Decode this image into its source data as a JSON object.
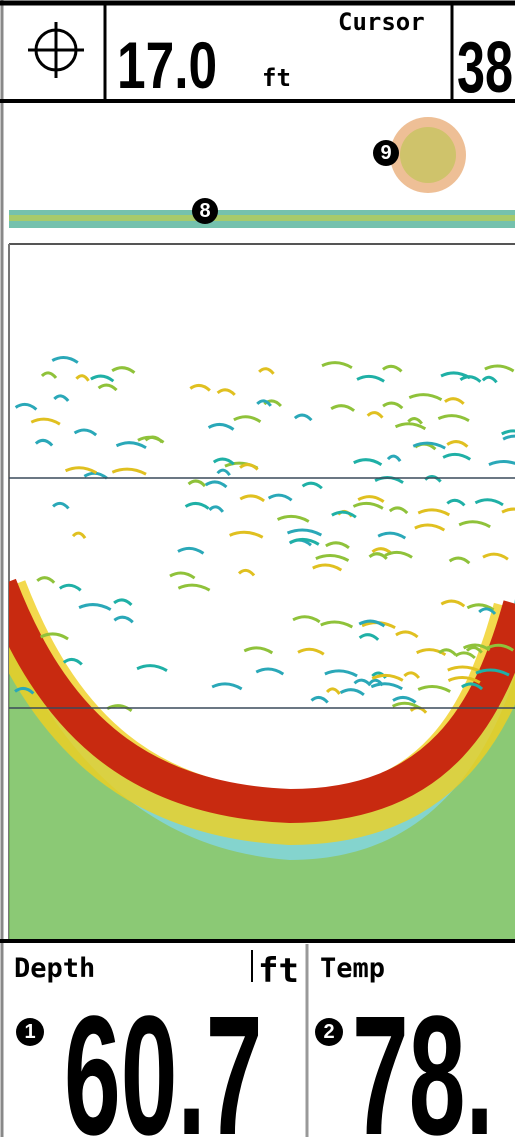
{
  "header": {
    "depth": "17.0",
    "depth_unit": "ft",
    "cursor_label": "Cursor",
    "cursor_value": "38"
  },
  "callouts": [
    "8",
    "9",
    "1",
    "2"
  ],
  "readouts": [
    {
      "label": "Depth",
      "unit": "ft",
      "value": "60.7"
    },
    {
      "label": "Temp",
      "value": "78."
    }
  ]
}
